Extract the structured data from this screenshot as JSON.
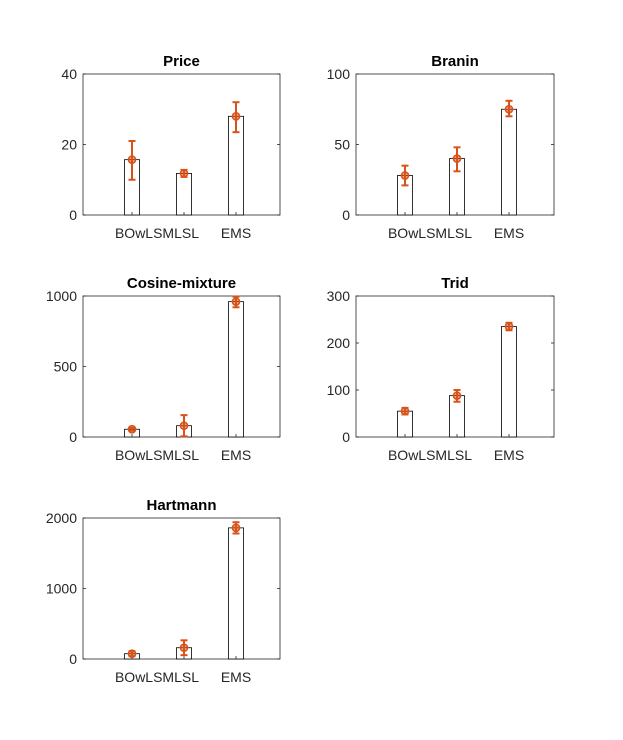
{
  "colors": {
    "bar_fill": "#ffffff",
    "bar_edge": "#000000",
    "axis": "#262626",
    "marker": "#d95319"
  },
  "chart_data": [
    {
      "type": "bar",
      "title": "Price",
      "categories": [
        "BO",
        "wLSMLSL",
        "EMS"
      ],
      "category_labels": "BOwLSMLSL",
      "values": [
        15.7,
        11.8,
        28.0
      ],
      "error_bars": [
        [
          10.0,
          21.0
        ],
        [
          10.8,
          12.8
        ],
        [
          23.5,
          32.0
        ]
      ],
      "ylim": [
        0,
        40
      ],
      "yticks": [
        0,
        20,
        40
      ],
      "grid": false
    },
    {
      "type": "bar",
      "title": "Branin",
      "categories": [
        "BO",
        "wLSMLSL",
        "EMS"
      ],
      "category_labels": "BOwLSMLSL",
      "values": [
        28,
        40,
        75
      ],
      "error_bars": [
        [
          21,
          35
        ],
        [
          31,
          48
        ],
        [
          70,
          81
        ]
      ],
      "ylim": [
        0,
        100
      ],
      "yticks": [
        0,
        50,
        100
      ],
      "grid": false
    },
    {
      "type": "bar",
      "title": "Cosine-mixture",
      "categories": [
        "BO",
        "wLSMLSL",
        "EMS"
      ],
      "category_labels": "BOwLSMLSL",
      "values": [
        55,
        80,
        960
      ],
      "error_bars": [
        [
          45,
          65
        ],
        [
          5,
          155
        ],
        [
          920,
          995
        ]
      ],
      "ylim": [
        0,
        1000
      ],
      "yticks": [
        0,
        500,
        1000
      ],
      "grid": false
    },
    {
      "type": "bar",
      "title": "Trid",
      "categories": [
        "BO",
        "wLSMLSL",
        "EMS"
      ],
      "category_labels": "BOwLSMLSL",
      "values": [
        55,
        88,
        235
      ],
      "error_bars": [
        [
          48,
          62
        ],
        [
          75,
          100
        ],
        [
          227,
          243
        ]
      ],
      "ylim": [
        0,
        300
      ],
      "yticks": [
        0,
        100,
        200,
        300
      ],
      "grid": false
    },
    {
      "type": "bar",
      "title": "Hartmann",
      "categories": [
        "BO",
        "wLSMLSL",
        "EMS"
      ],
      "category_labels": "BOwLSMLSL",
      "values": [
        75,
        160,
        1860
      ],
      "error_bars": [
        [
          40,
          110
        ],
        [
          55,
          265
        ],
        [
          1780,
          1940
        ]
      ],
      "ylim": [
        0,
        2000
      ],
      "yticks": [
        0,
        1000,
        2000
      ],
      "grid": false
    }
  ]
}
